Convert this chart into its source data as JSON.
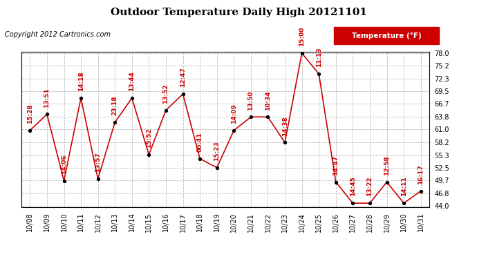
{
  "title": "Outdoor Temperature Daily High 20121101",
  "copyright": "Copyright 2012 Cartronics.com",
  "legend_label": "Temperature (°F)",
  "background_color": "#ffffff",
  "plot_bg_color": "#ffffff",
  "grid_color": "#bbbbbb",
  "line_color": "#cc0000",
  "marker_color": "#000000",
  "label_color": "#cc0000",
  "dates": [
    "10/08",
    "10/09",
    "10/10",
    "10/11",
    "10/12",
    "10/13",
    "10/14",
    "10/15",
    "10/16",
    "10/17",
    "10/18",
    "10/19",
    "10/20",
    "10/21",
    "10/22",
    "10/23",
    "10/24",
    "10/25",
    "10/26",
    "10/27",
    "10/28",
    "10/29",
    "10/30",
    "10/31"
  ],
  "values": [
    60.8,
    64.4,
    49.6,
    68.0,
    50.0,
    62.6,
    68.0,
    55.4,
    65.3,
    68.9,
    54.5,
    52.5,
    60.8,
    63.8,
    63.8,
    58.1,
    78.0,
    73.4,
    49.3,
    44.6,
    44.6,
    49.3,
    44.6,
    47.3
  ],
  "point_labels": [
    "15:28",
    "13:51",
    "14:06",
    "14:18",
    "13:57",
    "23:18",
    "13:44",
    "15:52",
    "13:52",
    "12:47",
    "00:41",
    "15:23",
    "14:09",
    "13:50",
    "10:34",
    "14:38",
    "15:00",
    "11:13",
    "14:47",
    "14:45",
    "13:22",
    "12:58",
    "14:11",
    "16:17"
  ],
  "ylim": [
    44.0,
    78.0
  ],
  "yticks": [
    44.0,
    46.8,
    49.7,
    52.5,
    55.3,
    58.2,
    61.0,
    63.8,
    66.7,
    69.5,
    72.3,
    75.2,
    78.0
  ],
  "title_fontsize": 11,
  "tick_fontsize": 7,
  "label_fontsize": 6.5,
  "copyright_fontsize": 7
}
